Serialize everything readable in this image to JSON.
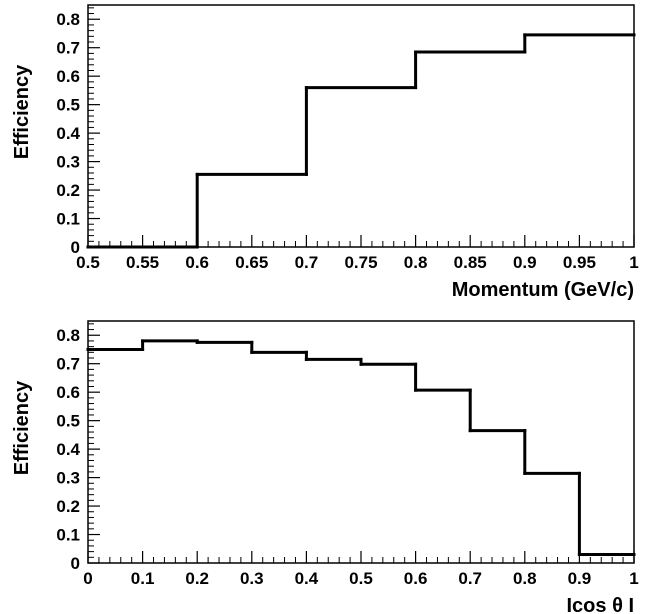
{
  "chart_data": [
    {
      "type": "step",
      "title": "",
      "xlabel": "Momentum (GeV/c)",
      "ylabel": "Efficiency",
      "xlim": [
        0.5,
        1.0
      ],
      "ylim": [
        0,
        0.85
      ],
      "grid": false,
      "x_ticks": [
        "0.5",
        "0.55",
        "0.6",
        "0.65",
        "0.7",
        "0.75",
        "0.8",
        "0.85",
        "0.9",
        "0.95",
        "1"
      ],
      "y_ticks": [
        "0",
        "0.1",
        "0.2",
        "0.3",
        "0.4",
        "0.5",
        "0.6",
        "0.7",
        "0.8"
      ],
      "bin_edges": [
        0.5,
        0.6,
        0.7,
        0.8,
        0.9,
        1.0
      ],
      "values": [
        0.0,
        0.255,
        0.56,
        0.685,
        0.745
      ]
    },
    {
      "type": "step",
      "title": "",
      "xlabel": "Icos θ I",
      "ylabel": "Efficiency",
      "xlim": [
        0,
        1
      ],
      "ylim": [
        0,
        0.85
      ],
      "grid": false,
      "x_ticks": [
        "0",
        "0.1",
        "0.2",
        "0.3",
        "0.4",
        "0.5",
        "0.6",
        "0.7",
        "0.8",
        "0.9",
        "1"
      ],
      "y_ticks": [
        "0",
        "0.1",
        "0.2",
        "0.3",
        "0.4",
        "0.5",
        "0.6",
        "0.7",
        "0.8"
      ],
      "bin_edges": [
        0,
        0.1,
        0.2,
        0.3,
        0.4,
        0.5,
        0.6,
        0.7,
        0.8,
        0.9,
        1.0
      ],
      "values": [
        0.75,
        0.78,
        0.775,
        0.74,
        0.715,
        0.698,
        0.607,
        0.465,
        0.315,
        0.03
      ]
    }
  ]
}
